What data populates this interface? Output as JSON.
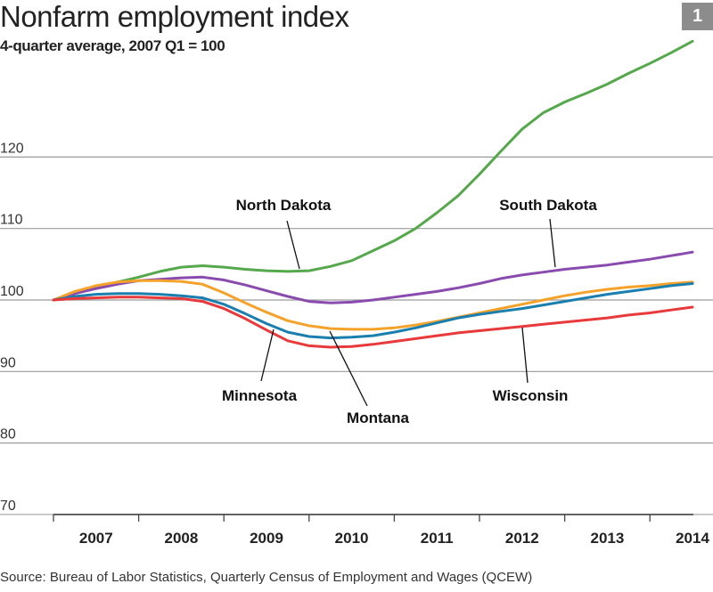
{
  "badge": "1",
  "source": "Source: Bureau of Labor Statistics, Quarterly Census of Employment and Wages (QCEW)",
  "chart_data": {
    "type": "line",
    "title": "Nonfarm employment index",
    "subtitle": "4-quarter average, 2007 Q1 = 100",
    "xlabel": "",
    "ylabel": "",
    "x_start": "2007 Q1",
    "x_end": "2014 Q3",
    "x_frequency": "quarterly",
    "x_ticks": [
      "2007",
      "2008",
      "2009",
      "2010",
      "2011",
      "2012",
      "2013",
      "2014"
    ],
    "y_ticks": [
      70,
      80,
      90,
      100,
      110,
      120
    ],
    "ylim": [
      70,
      137
    ],
    "grid": true,
    "legend": "inline labels with leader lines",
    "series": [
      {
        "name": "North Dakota",
        "color": "#55a84b",
        "values": [
          100,
          100.9,
          101.7,
          102.5,
          103.2,
          104.0,
          104.6,
          104.8,
          104.6,
          104.3,
          104.1,
          104.0,
          104.1,
          104.7,
          105.5,
          106.9,
          108.3,
          110.0,
          112.2,
          114.6,
          117.6,
          120.8,
          123.9,
          126.2,
          127.7,
          128.9,
          130.2,
          131.7,
          133.1,
          134.6,
          136.2
        ]
      },
      {
        "name": "South Dakota",
        "color": "#8a4baf",
        "values": [
          100,
          100.9,
          101.6,
          102.2,
          102.7,
          102.9,
          103.1,
          103.2,
          102.8,
          102.1,
          101.3,
          100.5,
          99.8,
          99.6,
          99.7,
          100.0,
          100.4,
          100.8,
          101.2,
          101.7,
          102.3,
          103.0,
          103.5,
          103.9,
          104.3,
          104.6,
          104.9,
          105.3,
          105.7,
          106.2,
          106.7
        ]
      },
      {
        "name": "Montana",
        "color": "#f5a22a",
        "values": [
          100,
          101.2,
          102.0,
          102.5,
          102.7,
          102.7,
          102.6,
          102.2,
          101.0,
          99.6,
          98.3,
          97.1,
          96.4,
          96.0,
          95.9,
          95.9,
          96.1,
          96.5,
          97.0,
          97.6,
          98.2,
          98.8,
          99.4,
          100.0,
          100.6,
          101.1,
          101.5,
          101.8,
          102.0,
          102.3,
          102.5
        ]
      },
      {
        "name": "Minnesota",
        "color": "#1a7fae",
        "values": [
          100,
          100.5,
          100.8,
          100.9,
          100.9,
          100.8,
          100.6,
          100.3,
          99.4,
          98.1,
          96.7,
          95.5,
          94.9,
          94.7,
          94.8,
          95.0,
          95.5,
          96.1,
          96.8,
          97.5,
          98.0,
          98.4,
          98.8,
          99.3,
          99.8,
          100.3,
          100.8,
          101.2,
          101.6,
          102.0,
          102.3
        ]
      },
      {
        "name": "Wisconsin",
        "color": "#e83a3b",
        "values": [
          100,
          100.2,
          100.3,
          100.4,
          100.4,
          100.3,
          100.2,
          99.8,
          98.8,
          97.4,
          95.8,
          94.3,
          93.6,
          93.4,
          93.5,
          93.8,
          94.2,
          94.6,
          95.0,
          95.4,
          95.7,
          96.0,
          96.3,
          96.6,
          96.9,
          97.2,
          97.5,
          97.9,
          98.2,
          98.6,
          99.0
        ]
      }
    ]
  }
}
